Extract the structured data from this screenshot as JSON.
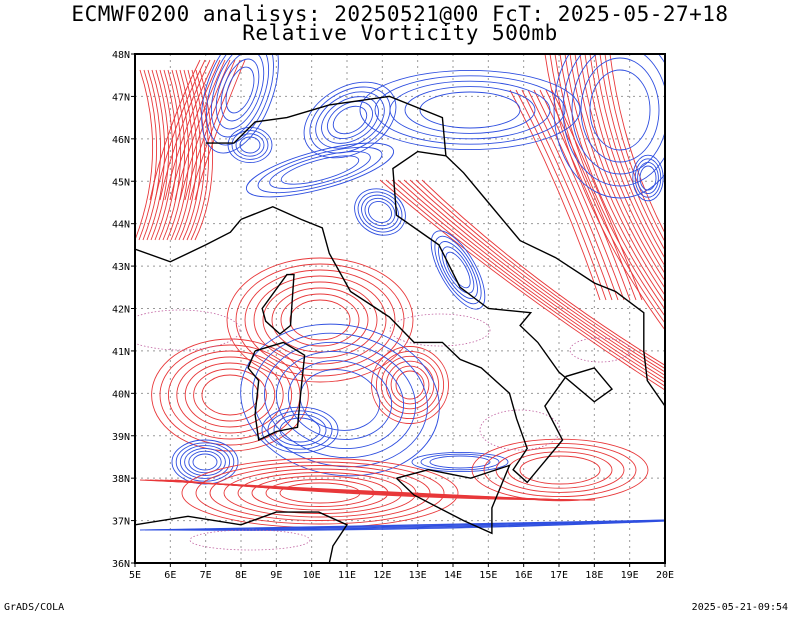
{
  "header": {
    "title_line1": "ECMWF0200 analisys: 20250521@00 FcT: 2025-05-27+18",
    "title_line2": "Relative Vorticity 500mb"
  },
  "footer": {
    "left": "GrADS/COLA",
    "right": "2025-05-21-09:54"
  },
  "map": {
    "lon_labels": [
      "5E",
      "6E",
      "7E",
      "8E",
      "9E",
      "10E",
      "11E",
      "12E",
      "13E",
      "14E",
      "15E",
      "16E",
      "17E",
      "18E",
      "19E",
      "20E"
    ],
    "lat_labels": [
      "36N",
      "37N",
      "38N",
      "39N",
      "40N",
      "41N",
      "42N",
      "43N",
      "44N",
      "45N",
      "46N",
      "47N",
      "48N"
    ],
    "lon_range": [
      5,
      20
    ],
    "lat_range": [
      36,
      48
    ],
    "colors": {
      "positive_contours": "#e8383a",
      "negative_contours": "#2f4fe0",
      "zero_contour": "#c060a0",
      "coastline": "#000000",
      "grid": "#999999"
    }
  }
}
